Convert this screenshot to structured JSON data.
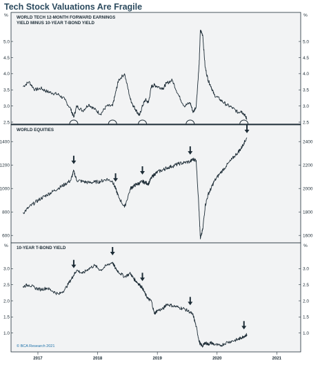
{
  "title": "Tech Stock Valuations Are Fragile",
  "copyright": "© BCA Research 2021",
  "colors": {
    "title": "#2b4a5e",
    "line": "#1c2b35",
    "copyright": "#1b6fa8",
    "panel_bg": "#f2f3f4"
  },
  "chart_data": [
    {
      "type": "line",
      "title": "WORLD TECH 12-MONTH FORWARD EARNINGS YIELD MINUS 10-YEAR T-BOND YIELD",
      "title_lines": [
        "WORLD TECH 12-MONTH FORWARD EARNINGS",
        "YIELD MINUS 10-YEAR T-BOND YIELD"
      ],
      "unit_left": "%",
      "unit_right": "%",
      "ylim": [
        2.5,
        5.6
      ],
      "left_ticks": [
        "2.5",
        "3.0",
        "3.5",
        "4.0",
        "4.5",
        "5.0"
      ],
      "right_ticks": [
        "2.5",
        "3.0",
        "3.5",
        "4.0",
        "4.5",
        "5.0"
      ],
      "markers": "circles",
      "x": [
        2016.75,
        2016.85,
        2016.95,
        2017.05,
        2017.15,
        2017.25,
        2017.35,
        2017.45,
        2017.55,
        2017.6,
        2017.65,
        2017.75,
        2017.85,
        2017.95,
        2018.05,
        2018.15,
        2018.25,
        2018.3,
        2018.35,
        2018.45,
        2018.55,
        2018.6,
        2018.65,
        2018.7,
        2018.75,
        2018.8,
        2018.85,
        2018.9,
        2018.95,
        2019.0,
        2019.1,
        2019.15,
        2019.25,
        2019.35,
        2019.45,
        2019.55,
        2019.6,
        2019.65,
        2019.7,
        2019.72,
        2019.76,
        2019.8,
        2019.85,
        2019.9,
        2019.95,
        2020.05,
        2020.15,
        2020.25,
        2020.35,
        2020.4,
        2020.45,
        2020.5
      ],
      "values": [
        3.6,
        3.75,
        3.5,
        3.55,
        3.45,
        3.4,
        3.35,
        3.2,
        2.9,
        2.65,
        3.0,
        2.85,
        3.05,
        2.9,
        2.75,
        3.0,
        3.0,
        3.4,
        3.8,
        4.0,
        3.2,
        3.0,
        2.85,
        2.7,
        3.0,
        3.2,
        3.1,
        3.6,
        3.65,
        3.6,
        3.55,
        3.7,
        3.8,
        3.35,
        3.0,
        3.1,
        2.8,
        3.0,
        4.3,
        5.35,
        5.2,
        4.2,
        3.8,
        3.6,
        3.35,
        3.2,
        3.05,
        2.95,
        2.8,
        2.85,
        2.75,
        2.6
      ],
      "circle_x": [
        2017.6,
        2018.25,
        2018.75,
        2019.55,
        2020.45
      ]
    },
    {
      "type": "line",
      "title": "WORLD EQUITIES",
      "title_lines": [
        "WORLD EQUITIES"
      ],
      "ylim": [
        1560,
        2460
      ],
      "left_ticks": [
        "600",
        "800",
        "1000",
        "1200",
        "1400"
      ],
      "left_tick_values": [
        1600,
        1800,
        2000,
        2200,
        2400
      ],
      "right_ticks": [
        "1600",
        "1800",
        "2000",
        "2200",
        "2400"
      ],
      "markers": "arrows",
      "x": [
        2016.75,
        2016.85,
        2016.95,
        2017.05,
        2017.15,
        2017.25,
        2017.35,
        2017.45,
        2017.55,
        2017.6,
        2017.65,
        2017.75,
        2017.85,
        2017.95,
        2018.05,
        2018.15,
        2018.25,
        2018.3,
        2018.35,
        2018.45,
        2018.55,
        2018.6,
        2018.65,
        2018.7,
        2018.75,
        2018.8,
        2018.85,
        2018.9,
        2018.95,
        2019.0,
        2019.1,
        2019.15,
        2019.25,
        2019.35,
        2019.45,
        2019.55,
        2019.6,
        2019.65,
        2019.7,
        2019.72,
        2019.76,
        2019.8,
        2019.85,
        2019.9,
        2019.95,
        2020.05,
        2020.15,
        2020.25,
        2020.35,
        2020.4,
        2020.45,
        2020.5
      ],
      "values": [
        1790,
        1840,
        1880,
        1915,
        1945,
        1975,
        2005,
        2035,
        2070,
        2150,
        2070,
        2060,
        2050,
        2055,
        2060,
        2080,
        2060,
        2000,
        1930,
        1840,
        2000,
        2020,
        2035,
        2045,
        2060,
        2050,
        2040,
        2090,
        2120,
        2140,
        2160,
        2175,
        2190,
        2210,
        2220,
        2230,
        2250,
        2240,
        1800,
        1570,
        1650,
        1850,
        1950,
        2000,
        2060,
        2130,
        2190,
        2250,
        2310,
        2340,
        2390,
        2430
      ],
      "arrow_x": [
        2017.6,
        2018.3,
        2018.75,
        2019.55,
        2020.5
      ]
    },
    {
      "type": "line",
      "title": "10-YEAR T-BOND YIELD",
      "title_lines": [
        "10-YEAR T-BOND YIELD"
      ],
      "unit_left": "%",
      "unit_right": "%",
      "ylim": [
        0.5,
        3.5
      ],
      "left_ticks": [
        "1.0",
        "1.5",
        "2.0",
        "2.5",
        "3.0"
      ],
      "right_ticks": [
        "1.0",
        "1.5",
        "2.0",
        "2.5",
        "3.0"
      ],
      "markers": "arrows",
      "x": [
        2016.75,
        2016.85,
        2016.95,
        2017.05,
        2017.15,
        2017.25,
        2017.35,
        2017.45,
        2017.55,
        2017.6,
        2017.65,
        2017.75,
        2017.85,
        2017.95,
        2018.05,
        2018.15,
        2018.25,
        2018.3,
        2018.35,
        2018.45,
        2018.55,
        2018.6,
        2018.65,
        2018.7,
        2018.75,
        2018.8,
        2018.85,
        2018.9,
        2018.95,
        2019.0,
        2019.1,
        2019.15,
        2019.25,
        2019.35,
        2019.45,
        2019.55,
        2019.6,
        2019.65,
        2019.7,
        2019.72,
        2019.76,
        2019.8,
        2019.85,
        2019.9,
        2019.95,
        2020.05,
        2020.15,
        2020.25,
        2020.35,
        2020.4,
        2020.45,
        2020.5
      ],
      "values": [
        2.45,
        2.5,
        2.4,
        2.35,
        2.4,
        2.3,
        2.2,
        2.35,
        2.65,
        2.8,
        2.95,
        2.85,
        3.0,
        3.1,
        2.95,
        3.1,
        3.2,
        3.0,
        2.9,
        2.75,
        2.85,
        2.7,
        2.6,
        2.5,
        2.4,
        2.2,
        2.05,
        2.0,
        1.6,
        1.7,
        1.75,
        1.9,
        1.85,
        1.8,
        1.75,
        1.65,
        1.55,
        1.2,
        0.75,
        0.65,
        0.6,
        0.7,
        0.65,
        0.7,
        0.65,
        0.6,
        0.7,
        0.75,
        0.8,
        0.85,
        0.9,
        0.95
      ],
      "arrow_x": [
        2017.6,
        2018.25,
        2018.75,
        2019.55,
        2020.45
      ]
    }
  ],
  "x_axis": {
    "xlim": [
      2016.55,
      2021.4
    ],
    "labels": [
      {
        "text": "2017",
        "x": 2017.0
      },
      {
        "text": "2018",
        "x": 2018.0
      },
      {
        "text": "2019",
        "x": 2019.0
      },
      {
        "text": "2020",
        "x": 2020.0
      },
      {
        "text": "2021",
        "x": 2021.0
      }
    ]
  }
}
